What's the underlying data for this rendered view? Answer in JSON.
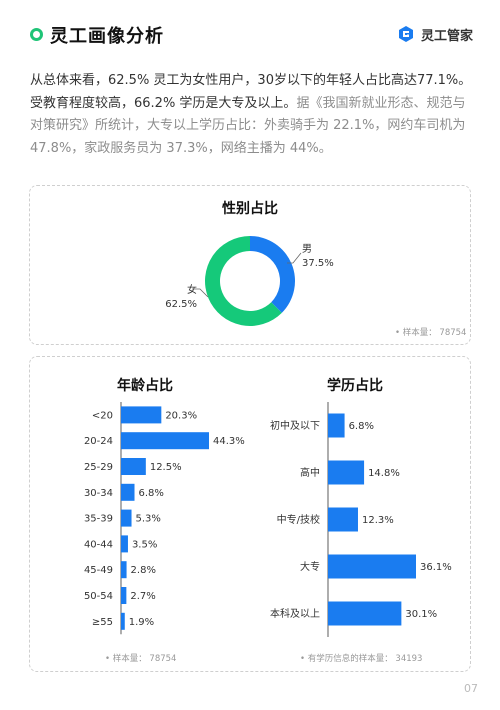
{
  "header": {
    "title": "灵工画像分析",
    "logo_text": "灵工管家"
  },
  "intro": {
    "main_text": "从总体来看，62.5% 灵工为女性用户，30岁以下的年轻人占比高达77.1%。受教育程度较高，66.2% 学历是大专及以上。",
    "gray_text": "据《我国新就业形态、规范与对策研究》所统计，大专以上学历占比：外卖骑手为 22.1%，网约车司机为 47.8%，家政服务员为 37.3%，网络主播为 44%。"
  },
  "colors": {
    "blue": "#1a7cf0",
    "green": "#15c97a"
  },
  "page_number": "07",
  "chart_data": [
    {
      "type": "pie",
      "title": "性别占比",
      "categories": [
        "男",
        "女"
      ],
      "values": [
        37.5,
        62.5
      ],
      "value_labels": [
        "37.5%",
        "62.5%"
      ],
      "colors": [
        "#1a7cf0",
        "#15c97a"
      ],
      "sample": "• 样本量： 78754"
    },
    {
      "type": "bar",
      "orientation": "horizontal",
      "title": "年龄占比",
      "categories": [
        "<20",
        "20-24",
        "25-29",
        "30-34",
        "35-39",
        "40-44",
        "45-49",
        "50-54",
        "≥55"
      ],
      "values": [
        20.3,
        44.3,
        12.5,
        6.8,
        5.3,
        3.5,
        2.8,
        2.7,
        1.9
      ],
      "value_labels": [
        "20.3%",
        "44.3%",
        "12.5%",
        "6.8%",
        "5.3%",
        "3.5%",
        "2.8%",
        "2.7%",
        "1.9%"
      ],
      "xlim": [
        0,
        45
      ],
      "sample": "• 样本量： 78754"
    },
    {
      "type": "bar",
      "orientation": "horizontal",
      "title": "学历占比",
      "categories": [
        "初中及以下",
        "高中",
        "中专/技校",
        "大专",
        "本科及以上"
      ],
      "values": [
        6.8,
        14.8,
        12.3,
        36.1,
        30.1
      ],
      "value_labels": [
        "6.8%",
        "14.8%",
        "12.3%",
        "36.1%",
        "30.1%"
      ],
      "xlim": [
        0,
        40
      ],
      "sample": "• 有学历信息的样本量： 34193"
    }
  ]
}
